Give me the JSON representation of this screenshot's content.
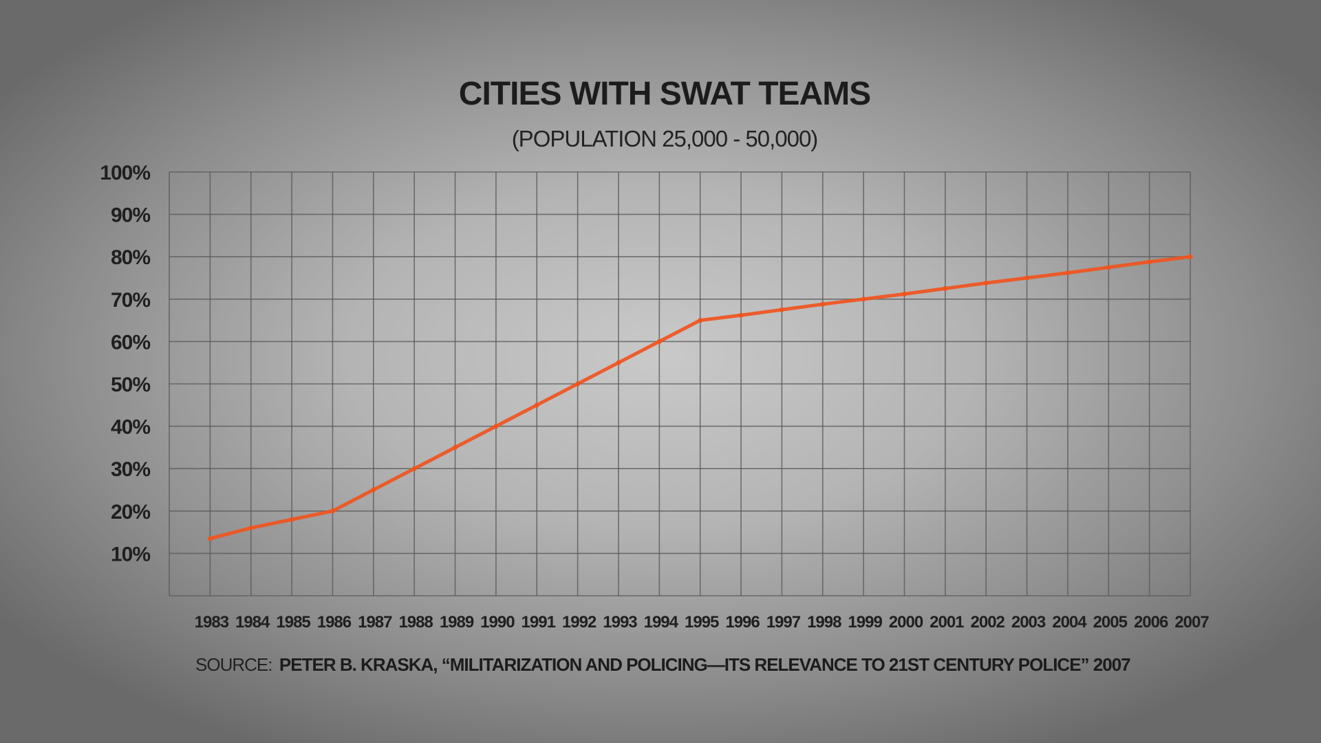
{
  "chart_data": {
    "type": "line",
    "title": "CITIES WITH SWAT TEAMS",
    "subtitle": "(POPULATION 25,000 - 50,000)",
    "xlabel": "",
    "ylabel": "",
    "x": [
      "1983",
      "1984",
      "1985",
      "1986",
      "1987",
      "1988",
      "1989",
      "1990",
      "1991",
      "1992",
      "1993",
      "1994",
      "1995",
      "1996",
      "1997",
      "1998",
      "1999",
      "2000",
      "2001",
      "2002",
      "2003",
      "2004",
      "2005",
      "2006",
      "2007"
    ],
    "y_ticks": [
      "10%",
      "20%",
      "30%",
      "40%",
      "50%",
      "60%",
      "70%",
      "80%",
      "90%",
      "100%"
    ],
    "ylim": [
      0,
      100
    ],
    "grid": true,
    "series": [
      {
        "values": [
          13.5,
          16,
          18,
          20,
          25,
          30,
          35,
          40,
          45,
          50,
          55,
          60,
          65,
          66.2,
          67.5,
          68.8,
          70,
          71.2,
          72.5,
          73.8,
          75,
          76.2,
          77.5,
          78.8,
          80
        ],
        "color": "#f0541e"
      }
    ],
    "source_prefix": "SOURCE:",
    "source_text": "PETER B. KRASKA, “MILITARIZATION AND POLICING—ITS RELEVANCE TO 21ST CENTURY POLICE” 2007"
  },
  "colors": {
    "line": "#f0541e",
    "grid": "#5a5a5a",
    "text": "#1c1c1c"
  }
}
